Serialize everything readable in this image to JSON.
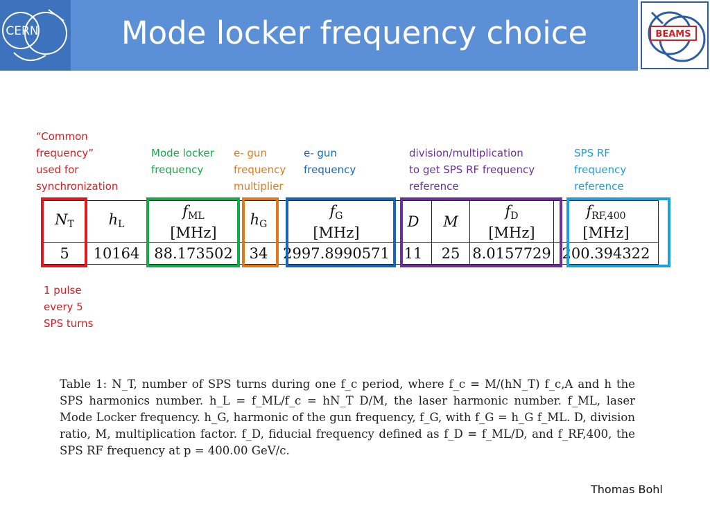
{
  "header": {
    "title": "Mode locker frequency choice",
    "cern_logo_text": "CERN",
    "beams_logo_text": "BEAMS"
  },
  "colors": {
    "header_band": "#5b8fd6",
    "red": "#e0191f",
    "green": "#16a84a",
    "orange": "#e07a18",
    "darkblue": "#1765b8",
    "purple": "#6b2fa0",
    "lightblue": "#1aa0dd"
  },
  "annotations": {
    "common_frequency": "“Common\nfrequency”\nused for\nsynchronization",
    "mode_locker": "Mode locker\nfrequency",
    "gun_multiplier": "e- gun\nfrequency\nmultiplier",
    "gun_frequency": "e- gun\nfrequency",
    "division": "division/multiplication\nto get SPS RF frequency\nreference",
    "sps_rf": "SPS RF\nfrequency\nreference",
    "one_pulse": "1 pulse\nevery 5\nSPS turns"
  },
  "table": {
    "units": "[MHz]",
    "values": {
      "NT": "5",
      "hL": "10164",
      "fML": "88.173502",
      "hG": "34",
      "fG": "2997.8990571",
      "D": "11",
      "M": "25",
      "fD": "8.0157729",
      "fRF": "200.394322"
    }
  },
  "caption": "Table 1: N_T, number of SPS turns during one f_c period, where f_c = M/(hN_T) f_c,A and h the SPS harmonics number. h_L = f_ML/f_c = hN_T D/M, the laser harmonic number. f_ML, laser Mode Locker frequency. h_G, harmonic of the gun frequency, f_G, with f_G = h_G f_ML. D, division ratio, M, multiplication factor. f_D, fiducial frequency defined as f_D = f_ML/D, and f_RF,400, the SPS RF frequency at p = 400.00 GeV/c.",
  "footer": {
    "author": "Thomas Bohl"
  }
}
